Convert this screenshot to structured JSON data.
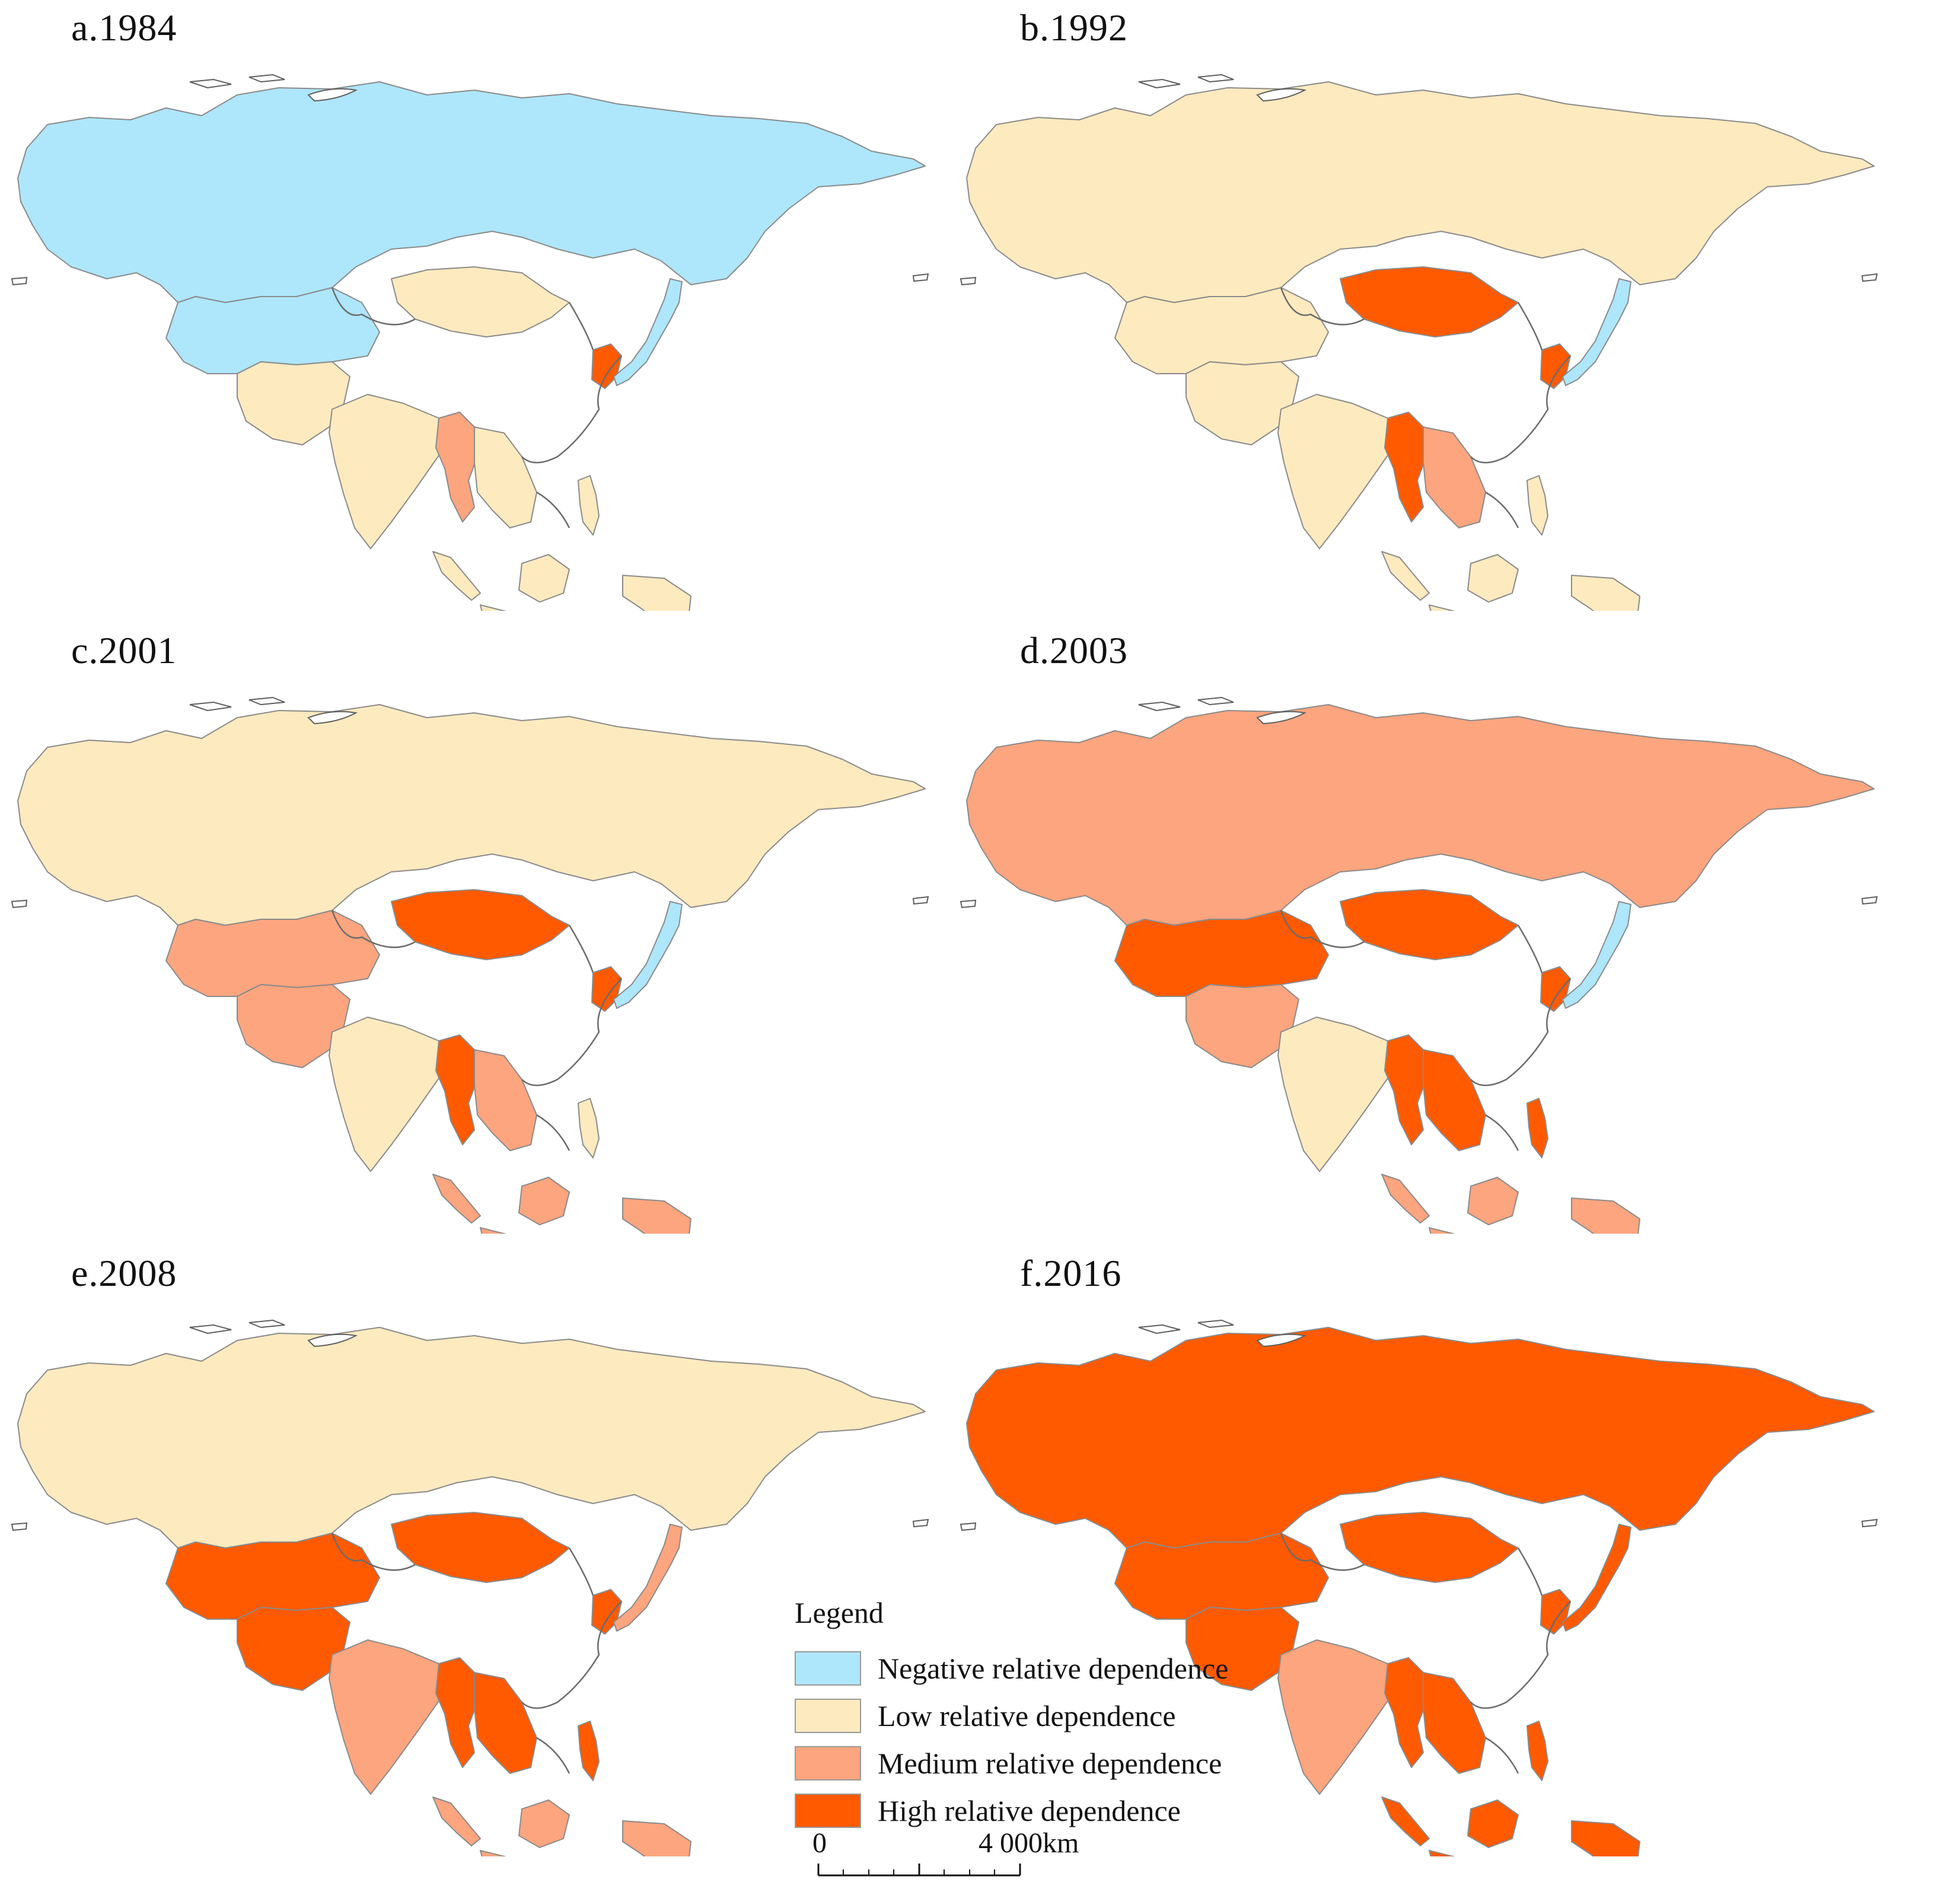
{
  "panels": [
    {
      "label": "a.1984",
      "regions": {
        "russia": "neg",
        "mongolia": "low",
        "central_asia": "neg",
        "south_asia": "low",
        "india": "low",
        "myanmar": "med",
        "indochina": "low",
        "nkorea": "high",
        "japan": "neg",
        "philippines": "low",
        "indonesia": "low",
        "malay": "low"
      }
    },
    {
      "label": "b.1992",
      "regions": {
        "russia": "low",
        "mongolia": "high",
        "central_asia": "low",
        "south_asia": "low",
        "india": "low",
        "myanmar": "high",
        "indochina": "med",
        "nkorea": "high",
        "japan": "neg",
        "philippines": "low",
        "indonesia": "low",
        "malay": "low"
      }
    },
    {
      "label": "c.2001",
      "regions": {
        "russia": "low",
        "mongolia": "high",
        "central_asia": "med",
        "south_asia": "med",
        "india": "low",
        "myanmar": "high",
        "indochina": "med",
        "nkorea": "high",
        "japan": "neg",
        "philippines": "low",
        "indonesia": "med",
        "malay": "med"
      }
    },
    {
      "label": "d.2003",
      "regions": {
        "russia": "med",
        "mongolia": "high",
        "central_asia": "high",
        "south_asia": "med",
        "india": "low",
        "myanmar": "high",
        "indochina": "high",
        "nkorea": "high",
        "japan": "neg",
        "philippines": "high",
        "indonesia": "med",
        "malay": "med"
      }
    },
    {
      "label": "e.2008",
      "regions": {
        "russia": "low",
        "mongolia": "high",
        "central_asia": "high",
        "south_asia": "high",
        "india": "med",
        "myanmar": "high",
        "indochina": "high",
        "nkorea": "high",
        "japan": "med",
        "philippines": "high",
        "indonesia": "med",
        "malay": "med"
      }
    },
    {
      "label": "f.2016",
      "regions": {
        "russia": "high",
        "mongolia": "high",
        "central_asia": "high",
        "south_asia": "high",
        "india": "med",
        "myanmar": "high",
        "indochina": "high",
        "nkorea": "high",
        "japan": "high",
        "philippines": "high",
        "indonesia": "high",
        "malay": "high"
      }
    }
  ],
  "legend": {
    "title": "Legend",
    "items": [
      {
        "key": "neg",
        "label": "Negative relative dependence",
        "color": "#aee6fb"
      },
      {
        "key": "low",
        "label": "Low relative dependence",
        "color": "#feeabf"
      },
      {
        "key": "med",
        "label": "Medium relative dependence",
        "color": "#fca57f"
      },
      {
        "key": "high",
        "label": "High relative dependence",
        "color": "#ff5a00"
      }
    ]
  },
  "scale_bar": {
    "start_label": "0",
    "end_label": "4 000km"
  }
}
